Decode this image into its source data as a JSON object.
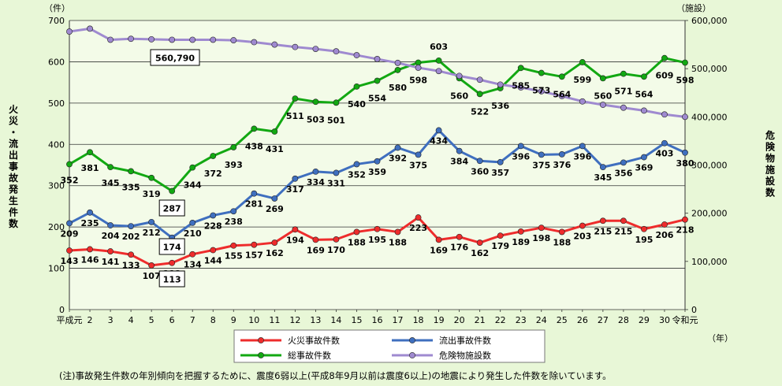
{
  "chart_data": {
    "type": "line",
    "categories": [
      "平成元",
      "2",
      "3",
      "4",
      "5",
      "6",
      "7",
      "8",
      "9",
      "10",
      "11",
      "12",
      "13",
      "14",
      "15",
      "16",
      "17",
      "18",
      "19",
      "20",
      "21",
      "22",
      "23",
      "24",
      "25",
      "26",
      "27",
      "28",
      "29",
      "30",
      "令和元"
    ],
    "y_left": {
      "label": "火災・流出事故発生件数",
      "unit": "（件）",
      "ylim": [
        0,
        700
      ],
      "ticks": [
        "0",
        "100",
        "200",
        "300",
        "400",
        "500",
        "600",
        "700"
      ]
    },
    "y_right": {
      "label": "危険物施設数",
      "unit": "（施設）",
      "ylim": [
        0,
        600000
      ],
      "ticks": [
        "0",
        "100,000",
        "200,000",
        "300,000",
        "400,000",
        "500,000",
        "600,000"
      ]
    },
    "x_unit": "（年）",
    "series": [
      {
        "name": "火災事故件数",
        "color": "#ee2c2c",
        "axis": "left",
        "values": [
          143,
          146,
          141,
          133,
          107,
          113,
          134,
          144,
          155,
          157,
          162,
          194,
          169,
          170,
          188,
          195,
          188,
          223,
          169,
          176,
          162,
          179,
          189,
          198,
          188,
          203,
          215,
          215,
          195,
          206,
          218
        ],
        "show_labels": true
      },
      {
        "name": "流出事故件数",
        "color": "#3f6fbf",
        "axis": "left",
        "values": [
          209,
          235,
          204,
          202,
          212,
          174,
          210,
          228,
          238,
          281,
          269,
          317,
          334,
          331,
          352,
          359,
          392,
          375,
          434,
          384,
          360,
          357,
          396,
          375,
          376,
          396,
          345,
          356,
          369,
          403,
          380
        ],
        "show_labels": true
      },
      {
        "name": "総事故件数",
        "color": "#12a812",
        "axis": "left",
        "values": [
          352,
          381,
          345,
          335,
          319,
          287,
          344,
          372,
          393,
          438,
          431,
          511,
          503,
          501,
          540,
          554,
          580,
          598,
          603,
          560,
          522,
          536,
          585,
          573,
          564,
          599,
          560,
          571,
          564,
          609,
          598
        ],
        "show_labels": true
      },
      {
        "name": "危険物施設数",
        "color": "#9f8ad0",
        "axis": "right",
        "values": [
          577000,
          583000,
          560000,
          562000,
          561000,
          560000,
          560000,
          560000,
          559000,
          555000,
          550000,
          545000,
          541000,
          536000,
          528000,
          520000,
          512000,
          502000,
          495000,
          485000,
          477000,
          467000,
          461000,
          453000,
          443000,
          432000,
          425000,
          419000,
          413000,
          405000,
          400000
        ],
        "show_labels": false
      }
    ],
    "annotations": {
      "boxed": [
        "560,790",
        "287",
        "174",
        "113"
      ]
    }
  },
  "legend": [
    "火災事故件数",
    "流出事故件数",
    "総事故件数",
    "危険物施設数"
  ],
  "note": "(注)事故発生件数の年別傾向を把握するために、震度6弱以上(平成8年9月以前は震度6以上)の地震により発生した件数を除いています。"
}
